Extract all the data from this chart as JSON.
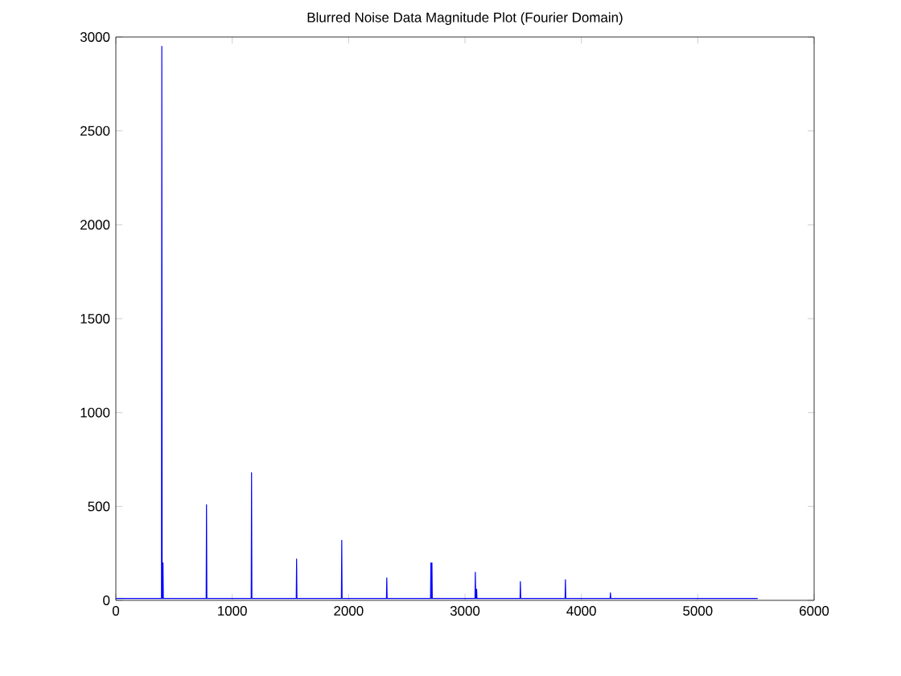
{
  "chart_data": {
    "type": "line",
    "title": "Blurred Noise Data Magnitude Plot (Fourier Domain)",
    "series": [
      {
        "color": "#0000ff",
        "x": [
          1,
          392,
          395,
          398,
          402,
          405,
          408,
          776,
          779,
          782,
          1163,
          1166,
          1169,
          1550,
          1553,
          1556,
          1938,
          1941,
          1944,
          2325,
          2328,
          2331,
          2704,
          2707,
          2710,
          2713,
          2716,
          2719,
          3086,
          3089,
          3092,
          3097,
          3100,
          3103,
          3473,
          3476,
          3479,
          3860,
          3863,
          3866,
          4247,
          4250,
          4253,
          5515
        ],
        "values": [
          10,
          10,
          2950,
          10,
          10,
          200,
          10,
          10,
          510,
          10,
          10,
          680,
          10,
          10,
          220,
          10,
          10,
          320,
          10,
          10,
          120,
          10,
          10,
          200,
          10,
          10,
          200,
          10,
          10,
          150,
          10,
          10,
          60,
          10,
          10,
          100,
          10,
          10,
          110,
          10,
          10,
          40,
          10,
          10
        ]
      }
    ],
    "xlim": [
      0,
      6000
    ],
    "ylim": [
      0,
      3000
    ],
    "xticks": [
      0,
      1000,
      2000,
      3000,
      4000,
      5000,
      6000
    ],
    "yticks": [
      0,
      500,
      1000,
      1500,
      2000,
      2500,
      3000
    ],
    "marker": "none",
    "line_style": "solid"
  }
}
